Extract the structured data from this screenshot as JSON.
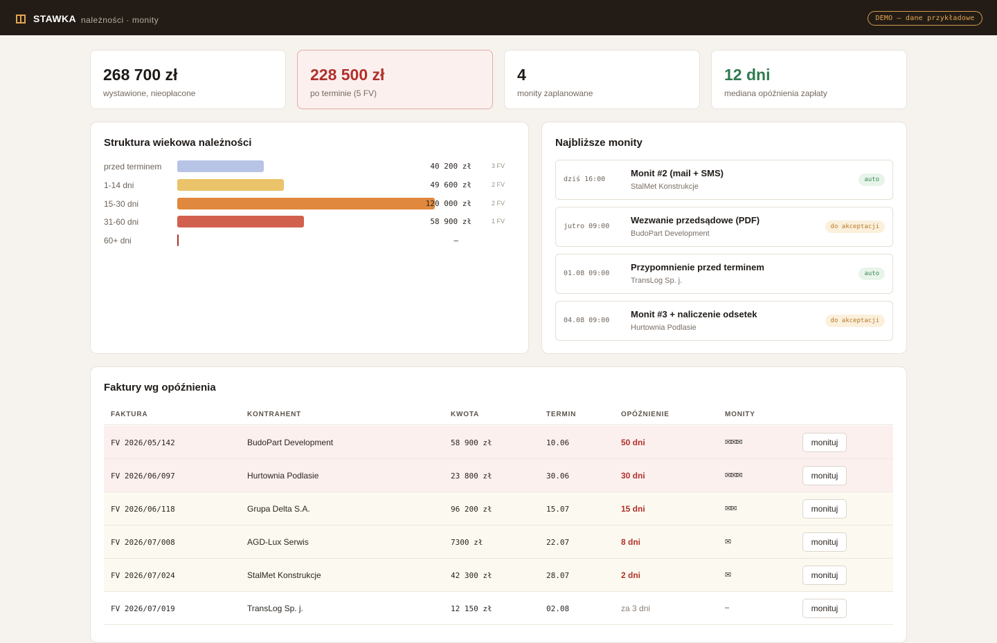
{
  "app": {
    "brand": "STAWKA",
    "subtitle": "należności · monity",
    "demo_badge": "DEMO – dane przykładowe"
  },
  "stats": [
    {
      "value": "268 700 zł",
      "label": "wystawione, nieopłacone",
      "tone": "normal"
    },
    {
      "value": "228 500 zł",
      "label": "po terminie (5 FV)",
      "tone": "alert"
    },
    {
      "value": "4",
      "label": "monity zaplanowane",
      "tone": "normal"
    },
    {
      "value": "12 dni",
      "label": "mediana opóźnienia zapłaty",
      "tone": "good"
    }
  ],
  "aging": {
    "title": "Struktura wiekowa należności",
    "rows": [
      {
        "label": "przed terminem",
        "amount": "40 200 zł",
        "amount_value": 40200,
        "count": "3 FV",
        "color": "#b7c4e6"
      },
      {
        "label": "1-14 dni",
        "amount": "49 600 zł",
        "amount_value": 49600,
        "count": "2 FV",
        "color": "#eac36a"
      },
      {
        "label": "15-30 dni",
        "amount": "120 000 zł",
        "amount_value": 120000,
        "count": "2 FV",
        "color": "#e0893e"
      },
      {
        "label": "31-60 dni",
        "amount": "58 900 zł",
        "amount_value": 58900,
        "count": "1 FV",
        "color": "#d2604e"
      },
      {
        "label": "60+ dni",
        "amount": "–",
        "amount_value": 0,
        "count": "",
        "color": "#a9322b"
      }
    ]
  },
  "reminders": {
    "title": "Najbliższe monity",
    "items": [
      {
        "time": "dziś 16:00",
        "title": "Monit #2 (mail + SMS)",
        "client": "StalMet Konstrukcje",
        "tag": "auto",
        "tag_kind": "auto"
      },
      {
        "time": "jutro 09:00",
        "title": "Wezwanie przedsądowe (PDF)",
        "client": "BudoPart Development",
        "tag": "do akceptacji",
        "tag_kind": "accept"
      },
      {
        "time": "01.08 09:00",
        "title": "Przypomnienie przed terminem",
        "client": "TransLog Sp. j.",
        "tag": "auto",
        "tag_kind": "auto"
      },
      {
        "time": "04.08 09:00",
        "title": "Monit #3 + naliczenie odsetek",
        "client": "Hurtownia Podlasie",
        "tag": "do akceptacji",
        "tag_kind": "accept"
      }
    ]
  },
  "invoices": {
    "title": "Faktury wg opóźnienia",
    "columns": [
      "FAKTURA",
      "KONTRAHENT",
      "KWOTA",
      "TERMIN",
      "OPÓŹNIENIE",
      "MONITY"
    ],
    "action_label": "monituj",
    "rows": [
      {
        "number": "FV 2026/05/142",
        "client": "BudoPart Development",
        "amount": "58 900 zł",
        "due": "10.06",
        "delay": "50 dni",
        "reminders": "✉✉✉",
        "tone": "red"
      },
      {
        "number": "FV 2026/06/097",
        "client": "Hurtownia Podlasie",
        "amount": "23 800 zł",
        "due": "30.06",
        "delay": "30 dni",
        "reminders": "✉✉✉",
        "tone": "red"
      },
      {
        "number": "FV 2026/06/118",
        "client": "Grupa Delta S.A.",
        "amount": "96 200 zł",
        "due": "15.07",
        "delay": "15 dni",
        "reminders": "✉✉",
        "tone": "yellow"
      },
      {
        "number": "FV 2026/07/008",
        "client": "AGD-Lux Serwis",
        "amount": "7300 zł",
        "due": "22.07",
        "delay": "8 dni",
        "reminders": "✉",
        "tone": "yellow"
      },
      {
        "number": "FV 2026/07/024",
        "client": "StalMet Konstrukcje",
        "amount": "42 300 zł",
        "due": "28.07",
        "delay": "2 dni",
        "reminders": "✉",
        "tone": "yellow"
      },
      {
        "number": "FV 2026/07/019",
        "client": "TransLog Sp. j.",
        "amount": "12 150 zł",
        "due": "02.08",
        "delay": "za 3 dni",
        "reminders": "–",
        "tone": "plain"
      }
    ]
  }
}
